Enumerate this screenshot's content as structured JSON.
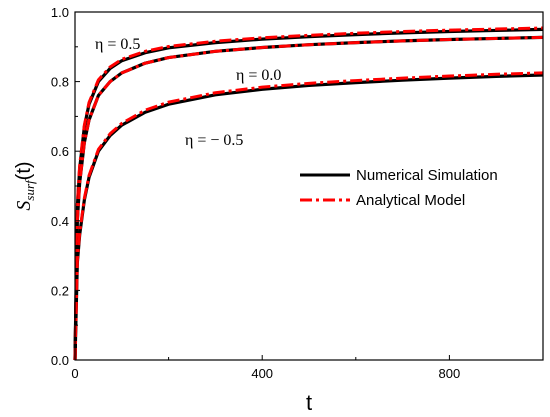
{
  "chart_data": {
    "type": "line",
    "xlabel": "t",
    "ylabel_main": "S",
    "ylabel_sub": "surf",
    "ylabel_tail": "(t)",
    "xlim": [
      0,
      1000
    ],
    "ylim": [
      0.0,
      1.0
    ],
    "xticks": [
      0,
      400,
      800
    ],
    "xtick_labels": [
      "0",
      "400",
      "800"
    ],
    "yticks": [
      0.0,
      0.2,
      0.4,
      0.6,
      0.8,
      1.0
    ],
    "ytick_labels": [
      "0.0",
      "0.2",
      "0.4",
      "0.6",
      "0.8",
      "1.0"
    ],
    "grid": false,
    "legend_position": "center-right",
    "legend": [
      {
        "label": "Numerical Simulation",
        "color": "#000000",
        "style": "solid"
      },
      {
        "label": "Analytical Model",
        "color": "#ff0000",
        "style": "dash-dot"
      }
    ],
    "annotations": [
      {
        "text": "η = 0.5",
        "x": 95,
        "y": 0.9
      },
      {
        "text": "η = 0.0",
        "x": 345,
        "y": 0.82
      },
      {
        "text": "η = − 0.5",
        "x": 210,
        "y": 0.62
      }
    ],
    "x": [
      0,
      5,
      10,
      20,
      30,
      50,
      75,
      100,
      150,
      200,
      300,
      400,
      500,
      600,
      700,
      800,
      900,
      1000
    ],
    "series": [
      {
        "group": "η = 0.5",
        "kind": "Numerical Simulation",
        "values": [
          0.0,
          0.44,
          0.55,
          0.67,
          0.735,
          0.8,
          0.838,
          0.86,
          0.883,
          0.897,
          0.912,
          0.922,
          0.929,
          0.935,
          0.94,
          0.944,
          0.947,
          0.95
        ]
      },
      {
        "group": "η = 0.5",
        "kind": "Analytical Model",
        "values": [
          0.0,
          0.45,
          0.56,
          0.675,
          0.74,
          0.805,
          0.842,
          0.864,
          0.887,
          0.901,
          0.916,
          0.926,
          0.933,
          0.939,
          0.944,
          0.948,
          0.951,
          0.954
        ]
      },
      {
        "group": "η = 0.0",
        "kind": "Numerical Simulation",
        "values": [
          0.0,
          0.4,
          0.51,
          0.625,
          0.69,
          0.76,
          0.8,
          0.825,
          0.853,
          0.869,
          0.887,
          0.898,
          0.906,
          0.912,
          0.917,
          0.921,
          0.924,
          0.927
        ]
      },
      {
        "group": "η = 0.0",
        "kind": "Analytical Model",
        "values": [
          0.0,
          0.4,
          0.51,
          0.625,
          0.69,
          0.76,
          0.8,
          0.825,
          0.853,
          0.869,
          0.887,
          0.898,
          0.906,
          0.912,
          0.917,
          0.921,
          0.924,
          0.927
        ]
      },
      {
        "group": "η = − 0.5",
        "kind": "Numerical Simulation",
        "values": [
          0.0,
          0.28,
          0.36,
          0.46,
          0.525,
          0.6,
          0.645,
          0.675,
          0.712,
          0.735,
          0.762,
          0.778,
          0.789,
          0.797,
          0.804,
          0.81,
          0.815,
          0.819
        ]
      },
      {
        "group": "η = − 0.5",
        "kind": "Analytical Model",
        "values": [
          0.0,
          0.285,
          0.365,
          0.465,
          0.53,
          0.605,
          0.65,
          0.68,
          0.718,
          0.741,
          0.768,
          0.784,
          0.795,
          0.803,
          0.81,
          0.816,
          0.821,
          0.825
        ]
      }
    ]
  }
}
